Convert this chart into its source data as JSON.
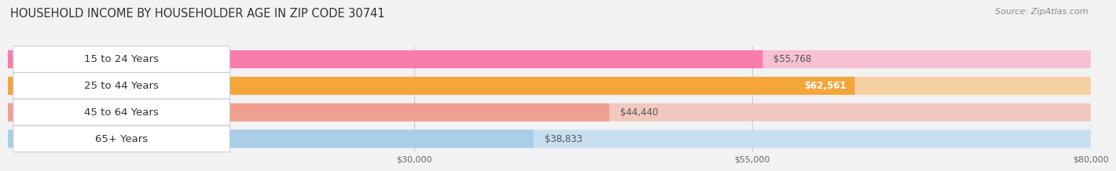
{
  "title": "HOUSEHOLD INCOME BY HOUSEHOLDER AGE IN ZIP CODE 30741",
  "source": "Source: ZipAtlas.com",
  "categories": [
    "15 to 24 Years",
    "25 to 44 Years",
    "45 to 64 Years",
    "65+ Years"
  ],
  "values": [
    55768,
    62561,
    44440,
    38833
  ],
  "bar_colors": [
    "#F87DAD",
    "#F5A63A",
    "#F0A090",
    "#AACDE8"
  ],
  "bar_bg_colors": [
    "#F8C0D4",
    "#F5CFA0",
    "#F0C8C0",
    "#C8DFF0"
  ],
  "value_labels": [
    "$55,768",
    "$62,561",
    "$44,440",
    "$38,833"
  ],
  "label_inside": [
    false,
    true,
    false,
    false
  ],
  "xlim": [
    0,
    80000
  ],
  "xticks": [
    30000,
    55000,
    80000
  ],
  "xtick_labels": [
    "$30,000",
    "$55,000",
    "$80,000"
  ],
  "background_color": "#f2f2f2",
  "title_fontsize": 10.5,
  "source_fontsize": 8,
  "label_fontsize": 8.5,
  "cat_fontsize": 9.5
}
